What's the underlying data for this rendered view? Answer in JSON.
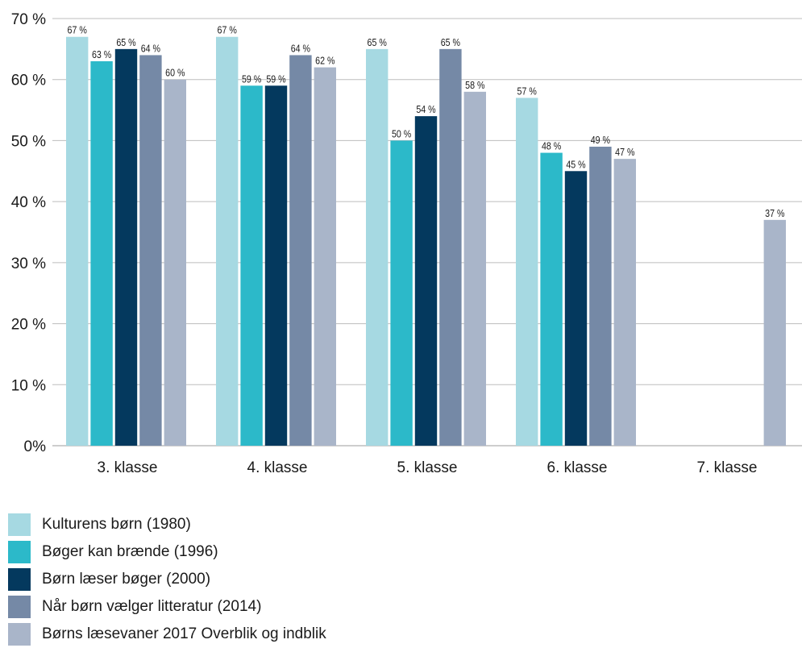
{
  "chart_data": {
    "type": "bar",
    "title": "",
    "xlabel": "",
    "ylabel": "",
    "categories": [
      "3. klasse",
      "4. klasse",
      "5. klasse",
      "6. klasse",
      "7. klasse"
    ],
    "ylim": [
      0,
      70
    ],
    "yticks": [
      0,
      10,
      20,
      30,
      40,
      50,
      60,
      70
    ],
    "ytick_labels": [
      "0%",
      "10 %",
      "20 %",
      "30 %",
      "40 %",
      "50 %",
      "60 %",
      "70 %"
    ],
    "grid": true,
    "legend_position": "bottom-left",
    "series": [
      {
        "name": "Kulturens børn (1980)",
        "color": "#a6d9e2",
        "values": [
          67,
          67,
          65,
          57,
          null
        ],
        "labels": [
          "67 %",
          "67 %",
          "65 %",
          "57 %",
          ""
        ]
      },
      {
        "name": "Bøger kan brænde (1996)",
        "color": "#2cb9c9",
        "values": [
          63,
          59,
          50,
          48,
          null
        ],
        "labels": [
          "63 %",
          "59 %",
          "50 %",
          "48 %",
          ""
        ]
      },
      {
        "name": "Børn læser bøger (2000)",
        "color": "#04395e",
        "values": [
          65,
          59,
          54,
          45,
          null
        ],
        "labels": [
          "65 %",
          "59 %",
          "54 %",
          "45 %",
          ""
        ]
      },
      {
        "name": "Når børn vælger litteratur (2014)",
        "color": "#7589a6",
        "values": [
          64,
          64,
          65,
          49,
          null
        ],
        "labels": [
          "64 %",
          "64 %",
          "65 %",
          "49 %",
          ""
        ]
      },
      {
        "name": "Børns læsevaner 2017 Overblik og indblik",
        "color": "#a9b5c9",
        "values": [
          60,
          62,
          58,
          47,
          37
        ],
        "labels": [
          "60 %",
          "62 %",
          "58 %",
          "47 %",
          "37 %"
        ]
      }
    ]
  }
}
